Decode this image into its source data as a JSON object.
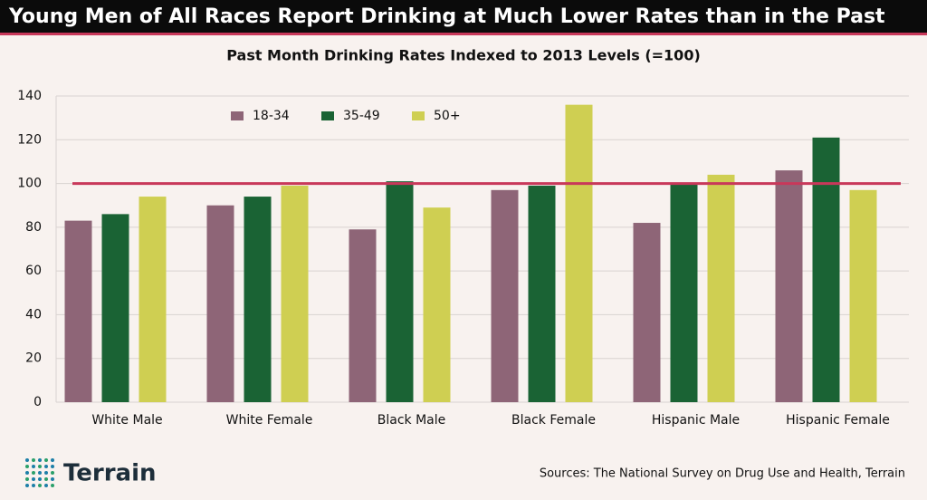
{
  "chart_data": {
    "type": "bar",
    "title": "Young Men of All Races Report Drinking at Much Lower Rates than in the Past",
    "subtitle": "Past Month Drinking Rates Indexed to 2013 Levels (=100)",
    "categories": [
      "White Male",
      "White Female",
      "Black Male",
      "Black Female",
      "Hispanic Male",
      "Hispanic Female"
    ],
    "series": [
      {
        "name": "18-34",
        "color": "#8e6577",
        "values": [
          83,
          90,
          79,
          97,
          82,
          106
        ]
      },
      {
        "name": "35-49",
        "color": "#1a6334",
        "values": [
          86,
          94,
          101,
          99,
          100,
          121
        ]
      },
      {
        "name": "50+",
        "color": "#cfcf52",
        "values": [
          94,
          99,
          89,
          136,
          104,
          97
        ]
      }
    ],
    "ylim": [
      0,
      140
    ],
    "yticks": [
      0,
      20,
      40,
      60,
      80,
      100,
      120,
      140
    ],
    "grid": true,
    "reference_line": 100,
    "reference_color": "#c8385a",
    "legend": "top-left",
    "logo_text": "Terrain",
    "source": "Sources: The National Survey on Drug Use and Health, Terrain"
  }
}
